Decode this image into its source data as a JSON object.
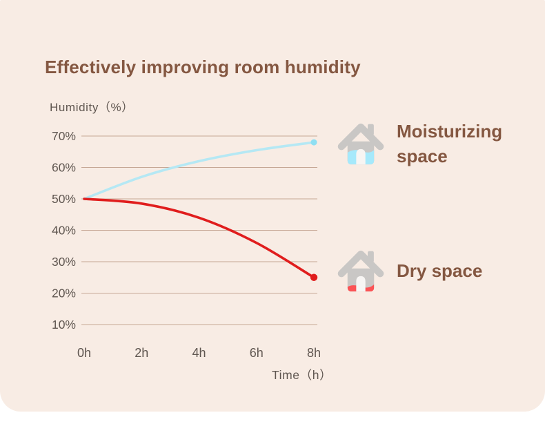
{
  "colors": {
    "page-bg": "#ffffff",
    "panel-bg": "#f8ece4",
    "title-brown": "#845741",
    "axis-text": "#5f5650",
    "gridline": "#bd9b87",
    "moist-line": "#b5e8f4",
    "moist-dot": "#8fdff2",
    "dry-line": "#e01d1d",
    "house-gray": "#c9c7c5",
    "house-door": "#f7f5f3",
    "house-water-blue": "#a6e9fb",
    "house-water-red": "#fb5355"
  },
  "header": {
    "title": "Effectively improving room humidity"
  },
  "legend": {
    "items": [
      {
        "label": "Moisturizing space",
        "icon": "moisturizing-house-icon"
      },
      {
        "label": "Dry space",
        "icon": "dry-house-icon"
      }
    ]
  },
  "chart_data": {
    "type": "line",
    "title": "Effectively improving room humidity",
    "xlabel": "Time（h）",
    "ylabel": "Humidity（%）",
    "x": [
      0,
      2,
      4,
      6,
      8
    ],
    "x_tick_labels": [
      "0h",
      "2h",
      "4h",
      "6h",
      "8h"
    ],
    "y_tick_values": [
      70,
      60,
      50,
      40,
      30,
      20,
      10
    ],
    "y_tick_labels": [
      "70%",
      "60%",
      "50%",
      "40%",
      "30%",
      "20%",
      "10%"
    ],
    "ylim": [
      10,
      75
    ],
    "grid": "horizontal-only",
    "legend_position": "right",
    "series": [
      {
        "name": "Moisturizing space",
        "slug": "moisturizing-space",
        "color_key": "moist-line",
        "dot_color_key": "moist-dot",
        "line_width": 3.6,
        "dot_radius": 4.5,
        "values": [
          50,
          57,
          62,
          65.5,
          68
        ]
      },
      {
        "name": "Dry space",
        "slug": "dry-space",
        "color_key": "dry-line",
        "dot_color_key": "dry-line",
        "line_width": 3.6,
        "dot_radius": 5.2,
        "values": [
          50,
          48.5,
          44,
          36,
          25
        ]
      }
    ]
  }
}
